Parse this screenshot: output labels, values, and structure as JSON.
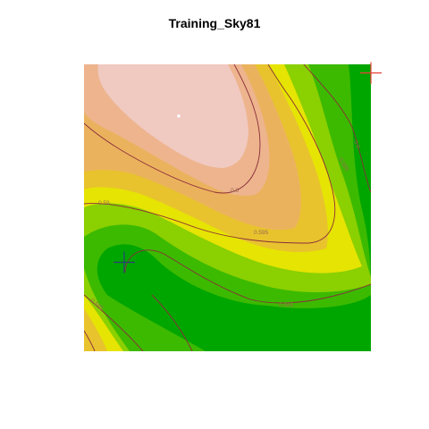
{
  "title": "Training_Sky81",
  "chart_data": {
    "type": "heatmap",
    "title": "Training_Sky81",
    "xlabel": "",
    "ylabel": "",
    "color_scale": [
      "#00a600",
      "#3cba00",
      "#8bd000",
      "#e6e402",
      "#e8c32e",
      "#ebb25e",
      "#edb48e",
      "#f0c9c0",
      "#f2f2f2"
    ],
    "contours": [
      {
        "level": 0.585,
        "label": "0.585"
      },
      {
        "level": 0.59,
        "label": "0.59"
      },
      {
        "level": 0.595,
        "label": "0.595"
      },
      {
        "level": 0.6,
        "label": "0.6"
      }
    ],
    "markers": [
      {
        "name": "red-cross",
        "color": "#e8403a",
        "x": 1.0,
        "y": 0.97
      },
      {
        "name": "blue-cross",
        "color": "#2a3d7a",
        "x": 0.14,
        "y": 0.31
      },
      {
        "name": "white-point",
        "color": "#ffffff",
        "x": 0.33,
        "y": 0.82
      }
    ],
    "grid": false,
    "legend": "none"
  }
}
